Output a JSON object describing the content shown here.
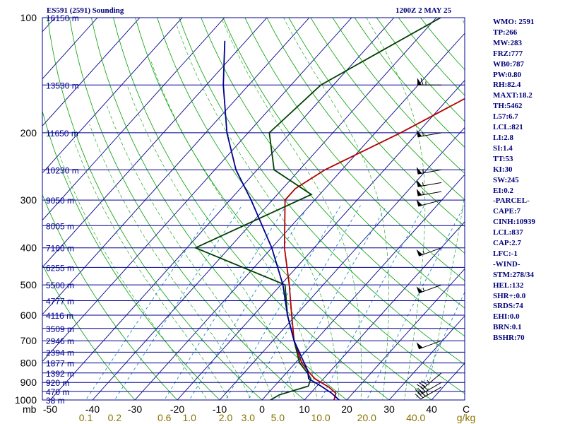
{
  "header": {
    "title": "ES591 (2591) Sounding",
    "time": "1200Z  2 MAY 25"
  },
  "indices": [
    "WMO: 2591",
    "TP:266",
    "MW:283",
    "FRZ:777",
    "WB0:787",
    "PW:0.80",
    "RH:82.4",
    "MAXT:18.2",
    "TH:5462",
    "L57:6.7",
    "LCL:821",
    "LI:2.8",
    "SI:1.4",
    "TT:53",
    "KI:30",
    "SW:245",
    "EI:0.2",
    "-PARCEL-",
    "CAPE:7",
    "CINH:10939",
    "LCL:837",
    "CAP:2.7",
    "LFC:-1",
    "-WIND-",
    "STM:278/34",
    "HEL:132",
    "SHR+:0.0",
    "SRDS:74",
    "EHI:0.0",
    "BRN:0.1",
    "BSHR:70"
  ],
  "chart_data": {
    "type": "line",
    "title": "ES591 (2591) Sounding",
    "subtitle": "1200Z  2 MAY 25",
    "ylabel": "mb",
    "xlabel": "C",
    "mixing_ratio_unit": "g/kg",
    "pressure_ticks": [
      100,
      200,
      300,
      400,
      500,
      600,
      700,
      800,
      900,
      1000
    ],
    "temperature_ticks": [
      -50,
      -40,
      -30,
      -20,
      -10,
      0,
      10,
      20,
      30,
      40
    ],
    "mixing_ratio_labels": [
      "0.1",
      "0.2",
      "0.6",
      "1.0",
      "2.0",
      "3.0",
      "5.0",
      "10.0",
      "20.0",
      "40.0"
    ],
    "height_labels": [
      {
        "p": 100,
        "label": "16150 m"
      },
      {
        "p": 150,
        "label": "13530 m"
      },
      {
        "p": 200,
        "label": "11650 m"
      },
      {
        "p": 250,
        "label": "10230 m"
      },
      {
        "p": 300,
        "label": "9050 m"
      },
      {
        "p": 350,
        "label": "8005 m"
      },
      {
        "p": 400,
        "label": "7100 m"
      },
      {
        "p": 450,
        "label": "6255 m"
      },
      {
        "p": 500,
        "label": "5500 m"
      },
      {
        "p": 550,
        "label": "4777 m"
      },
      {
        "p": 600,
        "label": "4116 m"
      },
      {
        "p": 650,
        "label": "3509 m"
      },
      {
        "p": 700,
        "label": "2946 m"
      },
      {
        "p": 750,
        "label": "2394 m"
      },
      {
        "p": 800,
        "label": "1877 m"
      },
      {
        "p": 850,
        "label": "1392 m"
      },
      {
        "p": 900,
        "label": "920 m"
      },
      {
        "p": 950,
        "label": "470 m"
      },
      {
        "p": 1000,
        "label": "38 m"
      }
    ],
    "series": [
      {
        "name": "Temperature",
        "color": "#b00000",
        "points": [
          {
            "p": 1000,
            "t": 17
          },
          {
            "p": 960,
            "t": 16
          },
          {
            "p": 925,
            "t": 13
          },
          {
            "p": 880,
            "t": 8
          },
          {
            "p": 850,
            "t": 5.5
          },
          {
            "p": 800,
            "t": 1.5
          },
          {
            "p": 700,
            "t": -5
          },
          {
            "p": 600,
            "t": -11
          },
          {
            "p": 500,
            "t": -18
          },
          {
            "p": 400,
            "t": -27
          },
          {
            "p": 300,
            "t": -37
          },
          {
            "p": 280,
            "t": -37
          },
          {
            "p": 250,
            "t": -34
          },
          {
            "p": 200,
            "t": -24
          },
          {
            "p": 150,
            "t": -13
          },
          {
            "p": 100,
            "t": -2
          }
        ]
      },
      {
        "name": "Dewpoint",
        "color": "#004000",
        "points": [
          {
            "p": 1000,
            "t": 2
          },
          {
            "p": 970,
            "t": 3
          },
          {
            "p": 920,
            "t": 8
          },
          {
            "p": 880,
            "t": 7
          },
          {
            "p": 850,
            "t": 5
          },
          {
            "p": 800,
            "t": 1
          },
          {
            "p": 700,
            "t": -5
          },
          {
            "p": 600,
            "t": -12
          },
          {
            "p": 500,
            "t": -19
          },
          {
            "p": 400,
            "t": -48
          },
          {
            "p": 290,
            "t": -32
          },
          {
            "p": 250,
            "t": -46
          },
          {
            "p": 200,
            "t": -55
          },
          {
            "p": 150,
            "t": -53
          },
          {
            "p": 100,
            "t": -39
          }
        ]
      },
      {
        "name": "Parcel",
        "color": "#000090",
        "points": [
          {
            "p": 1000,
            "t": 18.2
          },
          {
            "p": 960,
            "t": 15
          },
          {
            "p": 920,
            "t": 11
          },
          {
            "p": 880,
            "t": 6.5
          },
          {
            "p": 837,
            "t": 4.5
          },
          {
            "p": 700,
            "t": -5
          },
          {
            "p": 600,
            "t": -12
          },
          {
            "p": 500,
            "t": -19.5
          },
          {
            "p": 400,
            "t": -30
          },
          {
            "p": 300,
            "t": -45
          },
          {
            "p": 250,
            "t": -55
          },
          {
            "p": 200,
            "t": -65
          },
          {
            "p": 150,
            "t": -76
          },
          {
            "p": 115,
            "t": -85
          }
        ]
      }
    ],
    "wind_barbs": [
      {
        "p": 150,
        "dir": 270,
        "speed": 65
      },
      {
        "p": 200,
        "dir": 260,
        "speed": 55
      },
      {
        "p": 250,
        "dir": 260,
        "speed": 55
      },
      {
        "p": 270,
        "dir": 260,
        "speed": 55
      },
      {
        "p": 285,
        "dir": 260,
        "speed": 55
      },
      {
        "p": 300,
        "dir": 255,
        "speed": 50
      },
      {
        "p": 400,
        "dir": 250,
        "speed": 55
      },
      {
        "p": 500,
        "dir": 250,
        "speed": 55
      },
      {
        "p": 700,
        "dir": 250,
        "speed": 50
      },
      {
        "p": 850,
        "dir": 230,
        "speed": 35
      },
      {
        "p": 900,
        "dir": 240,
        "speed": 40
      },
      {
        "p": 925,
        "dir": 240,
        "speed": 35
      }
    ],
    "colors": {
      "isobar": "#000090",
      "isotherm": "#000090",
      "dry_adiabat": "#00a000",
      "moist_adiabat": "#00a000",
      "mixing_ratio": "#0080c0",
      "axis_text": "#000000",
      "mixing_text": "#8b7000"
    }
  }
}
